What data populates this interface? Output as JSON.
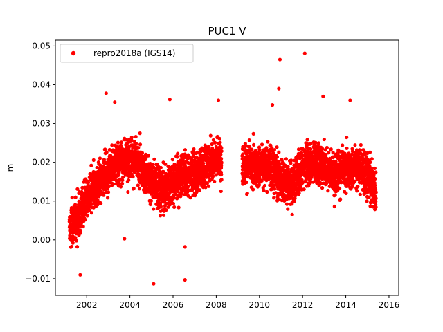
{
  "chart_data": {
    "type": "scatter",
    "title": "PUC1 V",
    "xlabel": "",
    "ylabel": "m",
    "xlim": [
      2000.55,
      2016.45
    ],
    "ylim": [
      -0.0143,
      0.0515
    ],
    "xticks": [
      2002,
      2004,
      2006,
      2008,
      2010,
      2012,
      2014,
      2016
    ],
    "xtick_labels": [
      "2002",
      "2004",
      "2006",
      "2008",
      "2010",
      "2012",
      "2014",
      "2016"
    ],
    "yticks": [
      -0.01,
      0.0,
      0.01,
      0.02,
      0.03,
      0.04,
      0.05
    ],
    "ytick_labels": [
      "−0.01",
      "0.00",
      "0.01",
      "0.02",
      "0.03",
      "0.04",
      "0.05"
    ],
    "grid": false,
    "legend_position": "upper-left",
    "colors": {
      "series": "#ff0000",
      "axes": "#000000",
      "background": "#ffffff"
    },
    "series": [
      {
        "name": "repro2018a (IGS14)",
        "marker": "filled-circle",
        "description_of_density": "dense daily solution series (~4800 points) from 2001.2 to 2015.4 with a data gap 2008.3-2009.2",
        "trend": [
          {
            "x": 2001.2,
            "y": 0.003
          },
          {
            "x": 2001.6,
            "y": 0.006
          },
          {
            "x": 2002.0,
            "y": 0.011
          },
          {
            "x": 2002.5,
            "y": 0.014
          },
          {
            "x": 2003.0,
            "y": 0.018
          },
          {
            "x": 2003.5,
            "y": 0.02
          },
          {
            "x": 2004.0,
            "y": 0.021
          },
          {
            "x": 2004.5,
            "y": 0.019
          },
          {
            "x": 2005.0,
            "y": 0.015
          },
          {
            "x": 2005.5,
            "y": 0.013
          },
          {
            "x": 2006.0,
            "y": 0.015
          },
          {
            "x": 2006.5,
            "y": 0.017
          },
          {
            "x": 2007.0,
            "y": 0.017
          },
          {
            "x": 2007.5,
            "y": 0.019
          },
          {
            "x": 2008.0,
            "y": 0.021
          },
          {
            "x": 2008.25,
            "y": 0.021
          },
          {
            "x": 2009.2,
            "y": 0.019
          },
          {
            "x": 2010.0,
            "y": 0.019
          },
          {
            "x": 2010.5,
            "y": 0.019
          },
          {
            "x": 2011.0,
            "y": 0.016
          },
          {
            "x": 2011.5,
            "y": 0.014
          },
          {
            "x": 2012.0,
            "y": 0.019
          },
          {
            "x": 2012.5,
            "y": 0.02
          },
          {
            "x": 2013.0,
            "y": 0.019
          },
          {
            "x": 2013.5,
            "y": 0.017
          },
          {
            "x": 2014.0,
            "y": 0.018
          },
          {
            "x": 2014.5,
            "y": 0.019
          },
          {
            "x": 2015.0,
            "y": 0.017
          },
          {
            "x": 2015.4,
            "y": 0.013
          }
        ],
        "notable_points": [
          {
            "x": 2002.9,
            "y": 0.0378
          },
          {
            "x": 2003.3,
            "y": 0.0355
          },
          {
            "x": 2003.75,
            "y": 0.0003
          },
          {
            "x": 2005.1,
            "y": -0.0113
          },
          {
            "x": 2005.85,
            "y": 0.0362
          },
          {
            "x": 2006.55,
            "y": -0.0103
          },
          {
            "x": 2006.55,
            "y": -0.0018
          },
          {
            "x": 2008.1,
            "y": 0.036
          },
          {
            "x": 2010.95,
            "y": 0.0465
          },
          {
            "x": 2010.9,
            "y": 0.039
          },
          {
            "x": 2010.6,
            "y": 0.0348
          },
          {
            "x": 2012.1,
            "y": 0.0481
          },
          {
            "x": 2012.95,
            "y": 0.037
          },
          {
            "x": 2014.2,
            "y": 0.036
          },
          {
            "x": 2001.7,
            "y": -0.009
          }
        ]
      }
    ]
  }
}
